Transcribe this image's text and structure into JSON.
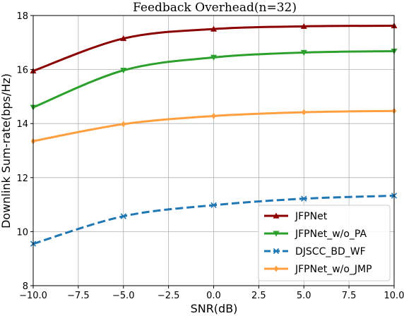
{
  "chart_data": {
    "type": "line",
    "title": "Feedback Overhead(n=32)",
    "xlabel": "SNR(dB)",
    "ylabel": "Downlink Sum-rate(bps/Hz)",
    "xlim": [
      -10,
      10
    ],
    "ylim": [
      8,
      18
    ],
    "xticks": [
      -10,
      -7.5,
      -5,
      -2.5,
      0,
      2.5,
      5,
      7.5,
      10
    ],
    "xtick_labels": [
      "−10.0",
      "−7.5",
      "−5.0",
      "−2.5",
      "0.0",
      "2.5",
      "5.0",
      "7.5",
      "10.0"
    ],
    "yticks": [
      8,
      10,
      12,
      14,
      16,
      18
    ],
    "ytick_labels": [
      "8",
      "10",
      "12",
      "14",
      "16",
      "18"
    ],
    "grid": true,
    "legend_position": "lower-right",
    "x": [
      -10,
      -5,
      0,
      5,
      10
    ],
    "series": [
      {
        "name": "JFPNet",
        "color": "#8b0000",
        "dash": "solid",
        "marker": "triangle-up",
        "values": [
          15.95,
          17.15,
          17.5,
          17.6,
          17.62
        ]
      },
      {
        "name": "JFPNet_w/o_PA",
        "color": "#2ca02c",
        "dash": "solid",
        "marker": "triangle-down",
        "values": [
          14.6,
          15.97,
          16.45,
          16.63,
          16.68
        ]
      },
      {
        "name": "DJSCC_BD_WF",
        "color": "#1f77b4",
        "dash": "dashed",
        "marker": "x",
        "values": [
          9.55,
          10.57,
          10.98,
          11.22,
          11.33
        ]
      },
      {
        "name": "JFPNet_w/o_JMP",
        "color": "#ffa040",
        "dash": "solid",
        "marker": "diamond",
        "values": [
          13.35,
          13.98,
          14.28,
          14.42,
          14.47
        ]
      }
    ]
  }
}
